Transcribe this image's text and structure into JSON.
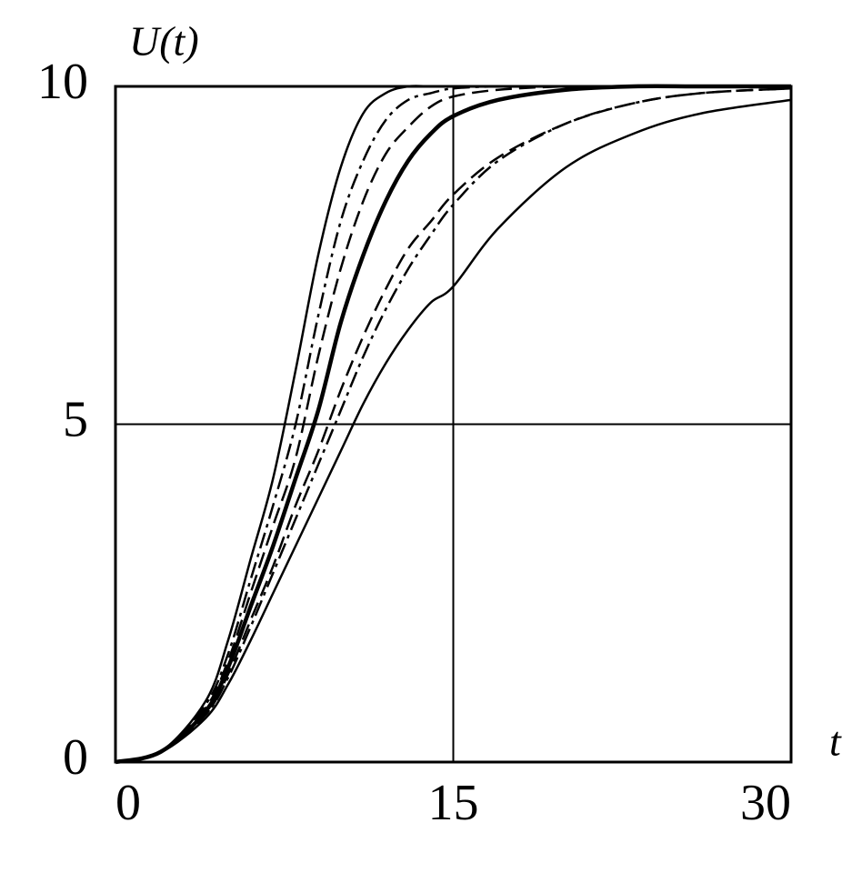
{
  "chart_data": {
    "type": "line",
    "x_label": "t",
    "y_label": "U(t)",
    "x": [
      0,
      2,
      4,
      5,
      6,
      7,
      8,
      9,
      10,
      11,
      12,
      13,
      14,
      15,
      17,
      20,
      23,
      26,
      30
    ],
    "series": [
      {
        "color": "#000000",
        "style": "solid",
        "values": [
          0,
          0.15,
          0.9,
          1.8,
          3.0,
          4.2,
          5.8,
          7.5,
          8.8,
          9.6,
          9.9,
          10,
          10,
          10,
          10,
          10,
          10,
          10,
          10
        ]
      },
      {
        "color": "#000000",
        "style": "dashdot",
        "values": [
          0,
          0.15,
          0.85,
          1.6,
          2.7,
          3.8,
          5.0,
          6.6,
          8.0,
          8.9,
          9.5,
          9.8,
          9.9,
          9.97,
          10,
          10,
          10,
          10,
          10
        ]
      },
      {
        "color": "#000000",
        "style": "dashed",
        "values": [
          0,
          0.15,
          0.8,
          1.5,
          2.5,
          3.5,
          4.5,
          6.0,
          7.3,
          8.3,
          9.0,
          9.4,
          9.7,
          9.85,
          9.95,
          10,
          10,
          10,
          10
        ]
      },
      {
        "color": "#000000",
        "style": "thick",
        "values": [
          0,
          0.15,
          0.75,
          1.4,
          2.3,
          3.2,
          4.2,
          5.2,
          6.5,
          7.5,
          8.3,
          8.9,
          9.3,
          9.56,
          9.8,
          9.95,
          10,
          10,
          10
        ]
      },
      {
        "color": "#000000",
        "style": "dashed",
        "values": [
          0,
          0.15,
          0.7,
          1.3,
          2.1,
          2.9,
          3.8,
          4.6,
          5.5,
          6.3,
          7.0,
          7.6,
          8.0,
          8.4,
          8.95,
          9.45,
          9.75,
          9.9,
          9.97
        ]
      },
      {
        "color": "#000000",
        "style": "dashdot",
        "values": [
          0,
          0.15,
          0.7,
          1.25,
          2.0,
          2.8,
          3.6,
          4.4,
          5.2,
          6.0,
          6.7,
          7.3,
          7.8,
          8.25,
          8.9,
          9.45,
          9.75,
          9.9,
          9.97
        ]
      },
      {
        "color": "#000000",
        "style": "solid",
        "values": [
          0,
          0.14,
          0.65,
          1.15,
          1.8,
          2.5,
          3.2,
          3.9,
          4.6,
          5.3,
          5.9,
          6.4,
          6.8,
          7.04,
          7.9,
          8.8,
          9.3,
          9.6,
          9.8
        ]
      }
    ],
    "xlim": [
      0,
      30
    ],
    "ylim": [
      0,
      10
    ],
    "xticks": [
      0,
      15,
      30
    ],
    "yticks": [
      0,
      5,
      10
    ],
    "grid": true
  }
}
